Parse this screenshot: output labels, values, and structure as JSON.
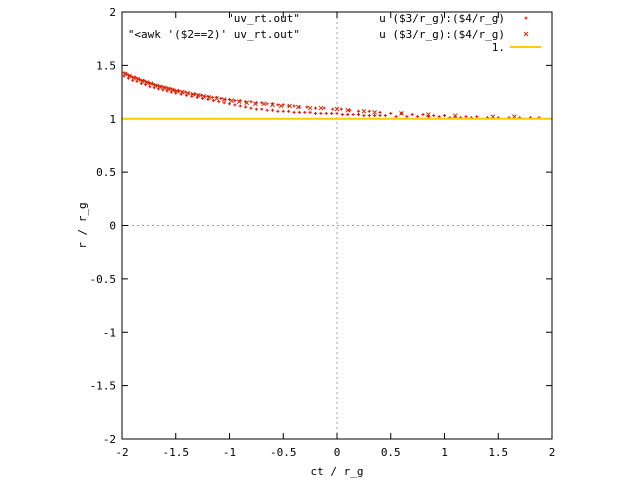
{
  "chart_data": {
    "type": "scatter",
    "title": "",
    "xlabel": "ct / r_g",
    "ylabel": "r / r_g",
    "xlim": [
      -2,
      2
    ],
    "ylim": [
      -2,
      2
    ],
    "x_ticks": [
      -2,
      -1.5,
      -1,
      -0.5,
      0,
      0.5,
      1,
      1.5,
      2
    ],
    "y_ticks": [
      -2,
      -1.5,
      -1,
      -0.5,
      0,
      0.5,
      1,
      1.5,
      2
    ],
    "x_tick_labels": [
      "-2",
      "-1.5",
      "-1",
      "-0.5",
      "0",
      "0.5",
      "1",
      "1.5",
      "2"
    ],
    "y_tick_labels": [
      "-2",
      "-1.5",
      "-1",
      "-0.5",
      "0",
      "0.5",
      "1",
      "1.5",
      "2"
    ],
    "zero_axes": true,
    "legend_position": "top-right",
    "colors": {
      "series1": "#ff0000",
      "series2": "#cc3300",
      "series3": "#ffcc00",
      "zero_axis": "#a0a0a0",
      "frame": "#000000"
    },
    "series": [
      {
        "name": "\"uv_rt.out\"",
        "using": "u ($3/r_g):($4/r_g)",
        "marker": "plus",
        "color": "#ff0000",
        "points": [
          [
            -1.98,
            1.43
          ],
          [
            -1.96,
            1.42
          ],
          [
            -1.94,
            1.41
          ],
          [
            -1.92,
            1.4
          ],
          [
            -1.9,
            1.39
          ],
          [
            -1.88,
            1.39
          ],
          [
            -1.86,
            1.38
          ],
          [
            -1.84,
            1.37
          ],
          [
            -1.82,
            1.36
          ],
          [
            -1.8,
            1.36
          ],
          [
            -1.78,
            1.35
          ],
          [
            -1.76,
            1.34
          ],
          [
            -1.74,
            1.33
          ],
          [
            -1.72,
            1.33
          ],
          [
            -1.7,
            1.32
          ],
          [
            -1.68,
            1.31
          ],
          [
            -1.66,
            1.31
          ],
          [
            -1.64,
            1.3
          ],
          [
            -1.62,
            1.3
          ],
          [
            -1.6,
            1.29
          ],
          [
            -1.58,
            1.29
          ],
          [
            -1.56,
            1.28
          ],
          [
            -1.54,
            1.28
          ],
          [
            -1.52,
            1.27
          ],
          [
            -1.5,
            1.26
          ],
          [
            -1.47,
            1.26
          ],
          [
            -1.44,
            1.25
          ],
          [
            -1.41,
            1.25
          ],
          [
            -1.38,
            1.24
          ],
          [
            -1.35,
            1.23
          ],
          [
            -1.32,
            1.23
          ],
          [
            -1.29,
            1.22
          ],
          [
            -1.26,
            1.22
          ],
          [
            -1.23,
            1.21
          ],
          [
            -1.2,
            1.21
          ],
          [
            -1.16,
            1.2
          ],
          [
            -1.12,
            1.2
          ],
          [
            -1.08,
            1.19
          ],
          [
            -1.04,
            1.18
          ],
          [
            -1.0,
            1.18
          ],
          [
            -0.95,
            1.17
          ],
          [
            -0.9,
            1.17
          ],
          [
            -0.85,
            1.16
          ],
          [
            -0.8,
            1.16
          ],
          [
            -0.75,
            1.15
          ],
          [
            -0.7,
            1.15
          ],
          [
            -0.65,
            1.14
          ],
          [
            -0.6,
            1.14
          ],
          [
            -0.55,
            1.13
          ],
          [
            -0.5,
            1.13
          ],
          [
            -0.45,
            1.12
          ],
          [
            -0.4,
            1.12
          ],
          [
            -0.35,
            1.11
          ],
          [
            -0.28,
            1.11
          ],
          [
            -0.2,
            1.1
          ],
          [
            -0.12,
            1.1
          ],
          [
            -0.04,
            1.09
          ],
          [
            0.04,
            1.09
          ],
          [
            0.12,
            1.08
          ],
          [
            0.2,
            1.07
          ],
          [
            0.3,
            1.07
          ],
          [
            0.4,
            1.06
          ],
          [
            0.5,
            1.05
          ],
          [
            0.6,
            1.05
          ],
          [
            0.7,
            1.04
          ],
          [
            0.8,
            1.04
          ],
          [
            0.9,
            1.03
          ],
          [
            1.0,
            1.03
          ],
          [
            1.1,
            1.02
          ],
          [
            1.2,
            1.02
          ],
          [
            1.3,
            1.02
          ],
          [
            1.4,
            1.01
          ],
          [
            1.5,
            1.01
          ],
          [
            1.6,
            1.01
          ],
          [
            1.7,
            1.01
          ],
          [
            1.8,
            1.01
          ],
          [
            1.88,
            1.01
          ],
          [
            -1.98,
            1.4
          ],
          [
            -1.94,
            1.38
          ],
          [
            -1.9,
            1.36
          ],
          [
            -1.86,
            1.35
          ],
          [
            -1.82,
            1.33
          ],
          [
            -1.78,
            1.32
          ],
          [
            -1.74,
            1.3
          ],
          [
            -1.7,
            1.29
          ],
          [
            -1.66,
            1.28
          ],
          [
            -1.62,
            1.27
          ],
          [
            -1.58,
            1.26
          ],
          [
            -1.54,
            1.25
          ],
          [
            -1.5,
            1.24
          ],
          [
            -1.45,
            1.23
          ],
          [
            -1.4,
            1.22
          ],
          [
            -1.35,
            1.21
          ],
          [
            -1.3,
            1.2
          ],
          [
            -1.25,
            1.19
          ],
          [
            -1.2,
            1.18
          ],
          [
            -1.15,
            1.17
          ],
          [
            -1.1,
            1.16
          ],
          [
            -1.05,
            1.15
          ],
          [
            -1.0,
            1.14
          ],
          [
            -0.95,
            1.13
          ],
          [
            -0.9,
            1.12
          ],
          [
            -0.85,
            1.11
          ],
          [
            -0.8,
            1.1
          ],
          [
            -0.75,
            1.09
          ],
          [
            -0.7,
            1.09
          ],
          [
            -0.65,
            1.08
          ],
          [
            -0.6,
            1.08
          ],
          [
            -0.55,
            1.07
          ],
          [
            -0.5,
            1.07
          ],
          [
            -0.45,
            1.07
          ],
          [
            -0.4,
            1.06
          ],
          [
            -0.35,
            1.06
          ],
          [
            -0.3,
            1.06
          ],
          [
            -0.25,
            1.06
          ],
          [
            -0.2,
            1.05
          ],
          [
            -0.15,
            1.05
          ],
          [
            -0.1,
            1.05
          ],
          [
            -0.05,
            1.05
          ],
          [
            0.0,
            1.05
          ],
          [
            0.05,
            1.04
          ],
          [
            0.1,
            1.04
          ],
          [
            0.15,
            1.04
          ],
          [
            0.2,
            1.04
          ],
          [
            0.25,
            1.03
          ],
          [
            0.3,
            1.03
          ],
          [
            0.35,
            1.03
          ],
          [
            0.4,
            1.03
          ],
          [
            0.45,
            1.03
          ],
          [
            0.55,
            1.02
          ],
          [
            0.65,
            1.02
          ],
          [
            0.75,
            1.02
          ],
          [
            0.85,
            1.02
          ],
          [
            0.95,
            1.02
          ],
          [
            1.05,
            1.01
          ],
          [
            1.15,
            1.01
          ],
          [
            1.25,
            1.01
          ]
        ]
      },
      {
        "name": "\"<awk '($2==2)' uv_rt.out\"",
        "using": "u ($3/r_g):($4/r_g)",
        "marker": "cross",
        "color": "#cc3300",
        "points": [
          [
            -1.97,
            1.42
          ],
          [
            -1.93,
            1.4
          ],
          [
            -1.89,
            1.38
          ],
          [
            -1.85,
            1.37
          ],
          [
            -1.81,
            1.35
          ],
          [
            -1.77,
            1.34
          ],
          [
            -1.73,
            1.33
          ],
          [
            -1.69,
            1.31
          ],
          [
            -1.65,
            1.3
          ],
          [
            -1.61,
            1.29
          ],
          [
            -1.57,
            1.28
          ],
          [
            -1.53,
            1.27
          ],
          [
            -1.49,
            1.26
          ],
          [
            -1.44,
            1.25
          ],
          [
            -1.39,
            1.24
          ],
          [
            -1.34,
            1.23
          ],
          [
            -1.29,
            1.22
          ],
          [
            -1.24,
            1.21
          ],
          [
            -1.19,
            1.2
          ],
          [
            -1.12,
            1.19
          ],
          [
            -1.05,
            1.18
          ],
          [
            -0.98,
            1.17
          ],
          [
            -0.91,
            1.16
          ],
          [
            -0.84,
            1.15
          ],
          [
            -0.76,
            1.14
          ],
          [
            -0.68,
            1.14
          ],
          [
            -0.6,
            1.13
          ],
          [
            -0.52,
            1.12
          ],
          [
            -0.44,
            1.12
          ],
          [
            -0.36,
            1.11
          ],
          [
            -0.25,
            1.1
          ],
          [
            -0.15,
            1.1
          ],
          [
            0.0,
            1.09
          ],
          [
            0.1,
            1.08
          ],
          [
            0.25,
            1.07
          ],
          [
            0.35,
            1.06
          ],
          [
            0.6,
            1.05
          ],
          [
            0.85,
            1.04
          ],
          [
            1.1,
            1.03
          ],
          [
            1.45,
            1.02
          ],
          [
            1.65,
            1.02
          ]
        ]
      },
      {
        "name": "1.",
        "type": "line",
        "color": "#ffcc00",
        "x": [
          -2,
          2
        ],
        "y": [
          1,
          1
        ]
      }
    ]
  }
}
